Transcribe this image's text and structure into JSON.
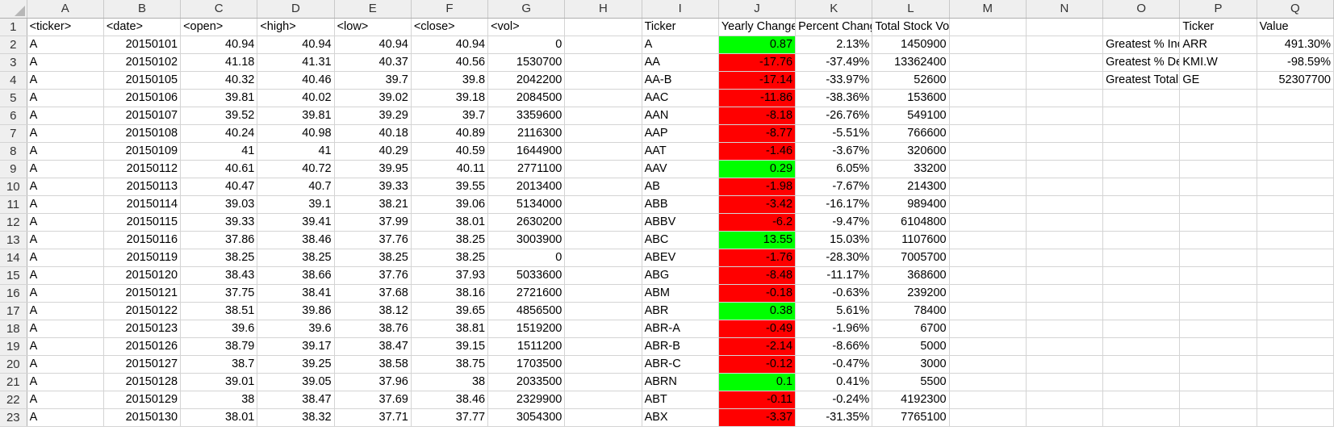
{
  "colors": {
    "positive": "#00ff00",
    "negative": "#ff0000"
  },
  "columns": [
    "A",
    "B",
    "C",
    "D",
    "E",
    "F",
    "G",
    "H",
    "I",
    "J",
    "K",
    "L",
    "M",
    "N",
    "O",
    "P",
    "Q"
  ],
  "rows": [
    [
      "<ticker>",
      "<date>",
      "<open>",
      "<high>",
      "<low>",
      "<close>",
      "<vol>",
      "",
      "Ticker",
      "Yearly Change",
      "Percent Change",
      "Total Stock Volume",
      "",
      "",
      "",
      "Ticker",
      "Value"
    ],
    [
      "A",
      "20150101",
      "40.94",
      "40.94",
      "40.94",
      "40.94",
      "0",
      "",
      "A",
      "0.87",
      "2.13%",
      "1450900",
      "",
      "",
      "Greatest % Increase",
      "ARR",
      "491.30%"
    ],
    [
      "A",
      "20150102",
      "41.18",
      "41.31",
      "40.37",
      "40.56",
      "1530700",
      "",
      "AA",
      "-17.76",
      "-37.49%",
      "13362400",
      "",
      "",
      "Greatest % Decrease",
      "KMI.W",
      "-98.59%"
    ],
    [
      "A",
      "20150105",
      "40.32",
      "40.46",
      "39.7",
      "39.8",
      "2042200",
      "",
      "AA-B",
      "-17.14",
      "-33.97%",
      "52600",
      "",
      "",
      "Greatest Total Volume",
      "GE",
      "52307700"
    ],
    [
      "A",
      "20150106",
      "39.81",
      "40.02",
      "39.02",
      "39.18",
      "2084500",
      "",
      "AAC",
      "-11.86",
      "-38.36%",
      "153600",
      "",
      "",
      "",
      "",
      ""
    ],
    [
      "A",
      "20150107",
      "39.52",
      "39.81",
      "39.29",
      "39.7",
      "3359600",
      "",
      "AAN",
      "-8.18",
      "-26.76%",
      "549100",
      "",
      "",
      "",
      "",
      ""
    ],
    [
      "A",
      "20150108",
      "40.24",
      "40.98",
      "40.18",
      "40.89",
      "2116300",
      "",
      "AAP",
      "-8.77",
      "-5.51%",
      "766600",
      "",
      "",
      "",
      "",
      ""
    ],
    [
      "A",
      "20150109",
      "41",
      "41",
      "40.29",
      "40.59",
      "1644900",
      "",
      "AAT",
      "-1.46",
      "-3.67%",
      "320600",
      "",
      "",
      "",
      "",
      ""
    ],
    [
      "A",
      "20150112",
      "40.61",
      "40.72",
      "39.95",
      "40.11",
      "2771100",
      "",
      "AAV",
      "0.29",
      "6.05%",
      "33200",
      "",
      "",
      "",
      "",
      ""
    ],
    [
      "A",
      "20150113",
      "40.47",
      "40.7",
      "39.33",
      "39.55",
      "2013400",
      "",
      "AB",
      "-1.98",
      "-7.67%",
      "214300",
      "",
      "",
      "",
      "",
      ""
    ],
    [
      "A",
      "20150114",
      "39.03",
      "39.1",
      "38.21",
      "39.06",
      "5134000",
      "",
      "ABB",
      "-3.42",
      "-16.17%",
      "989400",
      "",
      "",
      "",
      "",
      ""
    ],
    [
      "A",
      "20150115",
      "39.33",
      "39.41",
      "37.99",
      "38.01",
      "2630200",
      "",
      "ABBV",
      "-6.2",
      "-9.47%",
      "6104800",
      "",
      "",
      "",
      "",
      ""
    ],
    [
      "A",
      "20150116",
      "37.86",
      "38.46",
      "37.76",
      "38.25",
      "3003900",
      "",
      "ABC",
      "13.55",
      "15.03%",
      "1107600",
      "",
      "",
      "",
      "",
      ""
    ],
    [
      "A",
      "20150119",
      "38.25",
      "38.25",
      "38.25",
      "38.25",
      "0",
      "",
      "ABEV",
      "-1.76",
      "-28.30%",
      "7005700",
      "",
      "",
      "",
      "",
      ""
    ],
    [
      "A",
      "20150120",
      "38.43",
      "38.66",
      "37.76",
      "37.93",
      "5033600",
      "",
      "ABG",
      "-8.48",
      "-11.17%",
      "368600",
      "",
      "",
      "",
      "",
      ""
    ],
    [
      "A",
      "20150121",
      "37.75",
      "38.41",
      "37.68",
      "38.16",
      "2721600",
      "",
      "ABM",
      "-0.18",
      "-0.63%",
      "239200",
      "",
      "",
      "",
      "",
      ""
    ],
    [
      "A",
      "20150122",
      "38.51",
      "39.86",
      "38.12",
      "39.65",
      "4856500",
      "",
      "ABR",
      "0.38",
      "5.61%",
      "78400",
      "",
      "",
      "",
      "",
      ""
    ],
    [
      "A",
      "20150123",
      "39.6",
      "39.6",
      "38.76",
      "38.81",
      "1519200",
      "",
      "ABR-A",
      "-0.49",
      "-1.96%",
      "6700",
      "",
      "",
      "",
      "",
      ""
    ],
    [
      "A",
      "20150126",
      "38.79",
      "39.17",
      "38.47",
      "39.15",
      "1511200",
      "",
      "ABR-B",
      "-2.14",
      "-8.66%",
      "5000",
      "",
      "",
      "",
      "",
      ""
    ],
    [
      "A",
      "20150127",
      "38.7",
      "39.25",
      "38.58",
      "38.75",
      "1703500",
      "",
      "ABR-C",
      "-0.12",
      "-0.47%",
      "3000",
      "",
      "",
      "",
      "",
      ""
    ],
    [
      "A",
      "20150128",
      "39.01",
      "39.05",
      "37.96",
      "38",
      "2033500",
      "",
      "ABRN",
      "0.1",
      "0.41%",
      "5500",
      "",
      "",
      "",
      "",
      ""
    ],
    [
      "A",
      "20150129",
      "38",
      "38.47",
      "37.69",
      "38.46",
      "2329900",
      "",
      "ABT",
      "-0.11",
      "-0.24%",
      "4192300",
      "",
      "",
      "",
      "",
      ""
    ],
    [
      "A",
      "20150130",
      "38.01",
      "38.32",
      "37.71",
      "37.77",
      "3054300",
      "",
      "ABX",
      "-3.37",
      "-31.35%",
      "7765100",
      "",
      "",
      "",
      "",
      ""
    ]
  ]
}
